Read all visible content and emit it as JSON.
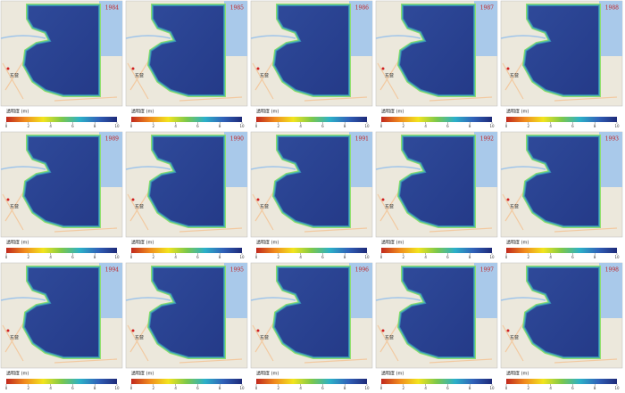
{
  "panels": [
    {
      "year": "1984"
    },
    {
      "year": "1985"
    },
    {
      "year": "1986"
    },
    {
      "year": "1987"
    },
    {
      "year": "1988"
    },
    {
      "year": "1989"
    },
    {
      "year": "1990"
    },
    {
      "year": "1991"
    },
    {
      "year": "1992"
    },
    {
      "year": "1993"
    },
    {
      "year": "1994"
    },
    {
      "year": "1995"
    },
    {
      "year": "1996"
    },
    {
      "year": "1997"
    },
    {
      "year": "1998"
    }
  ],
  "map_labels": [
    "东营"
  ],
  "colorbar": {
    "label": "透明度 (m)",
    "ticks": [
      0,
      2,
      4,
      6,
      8,
      10
    ],
    "colors": [
      "#c0281e",
      "#f08a1e",
      "#f2e41e",
      "#7cc84a",
      "#2cb0c8",
      "#3060b8",
      "#1e2a78"
    ]
  }
}
